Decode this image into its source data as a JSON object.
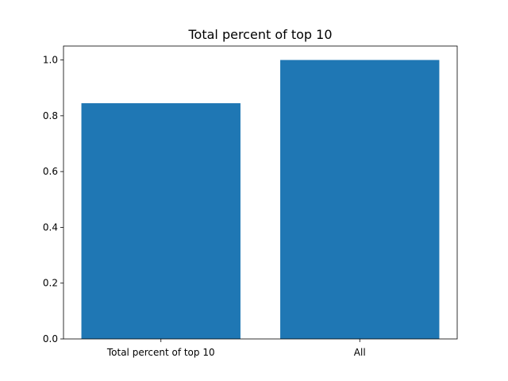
{
  "chart_data": {
    "type": "bar",
    "title": "Total percent of top 10",
    "xlabel": "",
    "ylabel": "",
    "categories": [
      "Total percent of top 10",
      "All"
    ],
    "values": [
      0.845,
      1.0
    ],
    "ylim": [
      0,
      1.05
    ],
    "yticks": [
      0.0,
      0.2,
      0.4,
      0.6,
      0.8,
      1.0
    ],
    "ytick_labels": [
      "0.0",
      "0.2",
      "0.4",
      "0.6",
      "0.8",
      "1.0"
    ],
    "bar_color": "#1f77b4",
    "grid": false,
    "legend": "none"
  }
}
